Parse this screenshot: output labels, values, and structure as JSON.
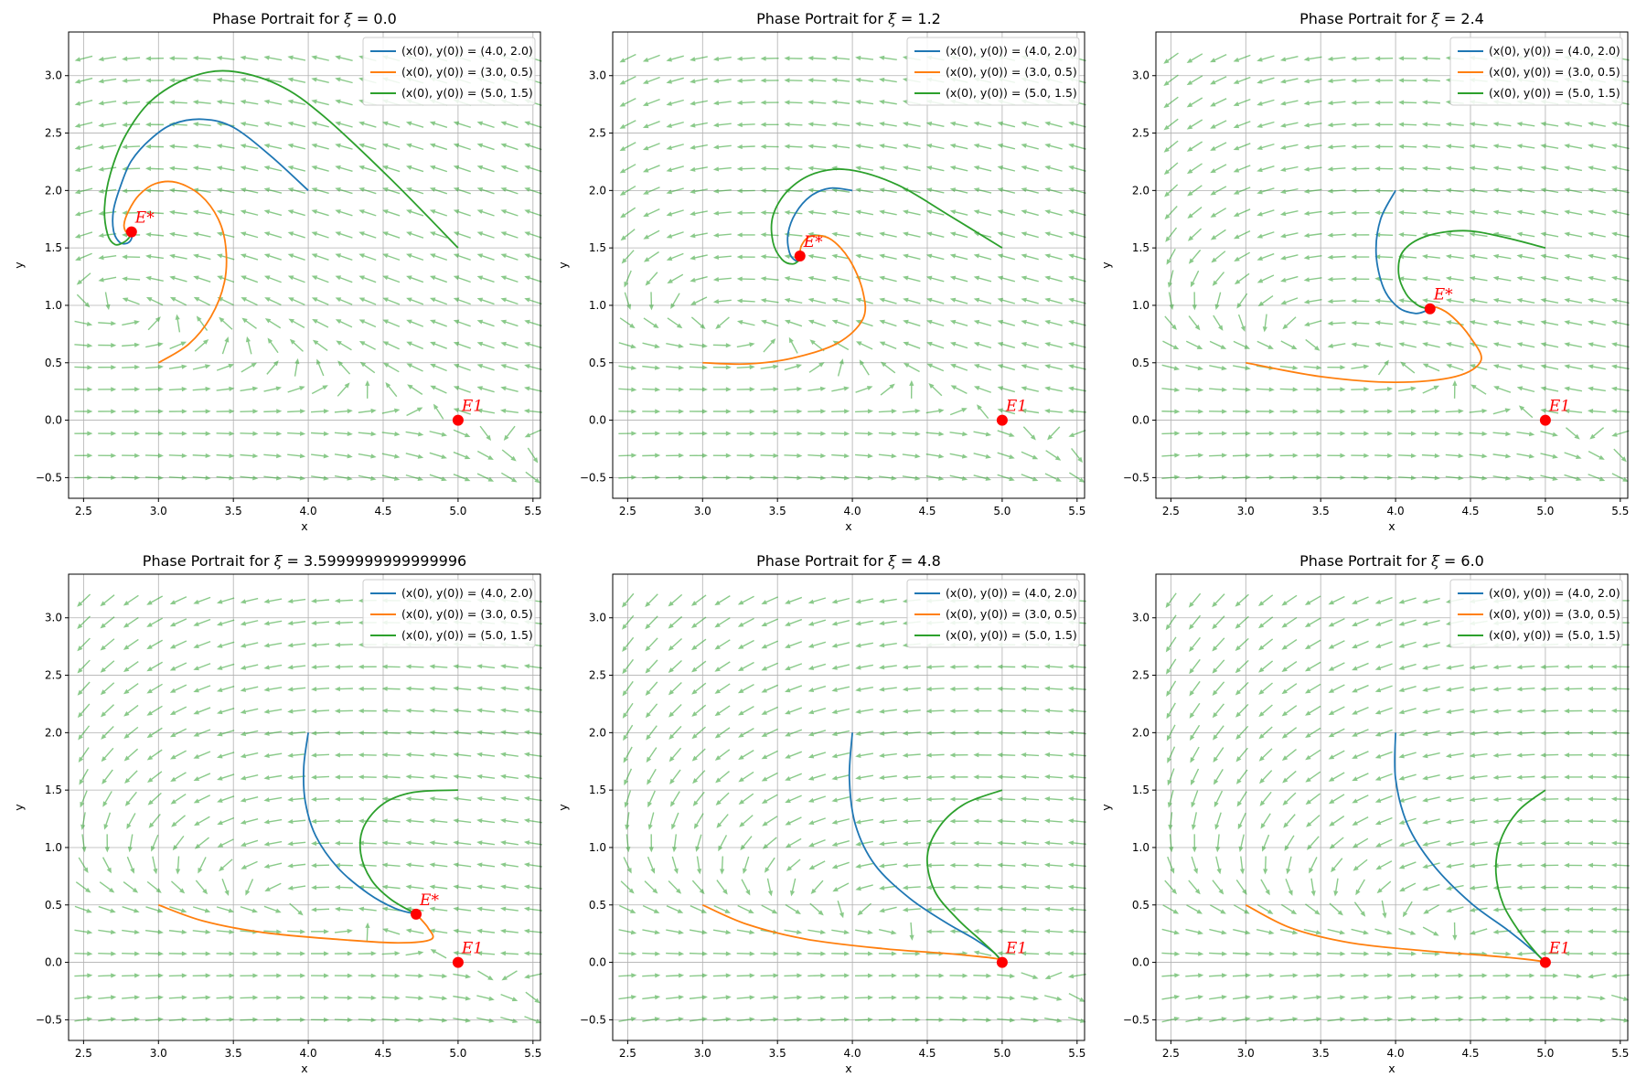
{
  "colors": {
    "series": [
      "#1f77b4",
      "#ff7f0e",
      "#2ca02c"
    ],
    "quiver": "#2ca02c",
    "grid": "#b0b0b0",
    "equilibrium": "#ff0000"
  },
  "chart_data": [
    {
      "type": "line",
      "title_prefix": "Phase Portrait for ",
      "title_symbol": "ξ",
      "title_value": "= 0.0",
      "xlabel": "x",
      "ylabel": "y",
      "xlim": [
        2.4,
        5.55
      ],
      "ylim": [
        -0.68,
        3.38
      ],
      "xticks": [
        2.5,
        3.0,
        3.5,
        4.0,
        4.5,
        5.0,
        5.5
      ],
      "yticks": [
        -0.5,
        0.0,
        0.5,
        1.0,
        1.5,
        2.0,
        2.5,
        3.0
      ],
      "grid": true,
      "legend_position": "upper right",
      "legend": [
        "(x(0), y(0)) = (4.0, 2.0)",
        "(x(0), y(0)) = (3.0, 0.5)",
        "(x(0), y(0)) = (5.0, 1.5)"
      ],
      "series": [
        {
          "name": "(x(0), y(0)) = (4.0, 2.0)",
          "points": [
            [
              4.0,
              2.0
            ],
            [
              3.75,
              2.3
            ],
            [
              3.5,
              2.55
            ],
            [
              3.3,
              2.62
            ],
            [
              3.1,
              2.58
            ],
            [
              2.95,
              2.45
            ],
            [
              2.82,
              2.26
            ],
            [
              2.75,
              2.05
            ],
            [
              2.7,
              1.83
            ],
            [
              2.7,
              1.65
            ],
            [
              2.74,
              1.55
            ],
            [
              2.79,
              1.54
            ],
            [
              2.82,
              1.58
            ],
            [
              2.82,
              1.64
            ]
          ]
        },
        {
          "name": "(x(0), y(0)) = (3.0, 0.5)",
          "points": [
            [
              3.0,
              0.5
            ],
            [
              3.2,
              0.66
            ],
            [
              3.35,
              0.9
            ],
            [
              3.44,
              1.2
            ],
            [
              3.45,
              1.5
            ],
            [
              3.4,
              1.75
            ],
            [
              3.28,
              1.96
            ],
            [
              3.12,
              2.07
            ],
            [
              2.98,
              2.06
            ],
            [
              2.87,
              1.96
            ],
            [
              2.8,
              1.82
            ],
            [
              2.77,
              1.7
            ],
            [
              2.79,
              1.63
            ],
            [
              2.82,
              1.64
            ]
          ]
        },
        {
          "name": "(x(0), y(0)) = (5.0, 1.5)",
          "points": [
            [
              5.0,
              1.5
            ],
            [
              4.55,
              2.1
            ],
            [
              4.1,
              2.65
            ],
            [
              3.8,
              2.92
            ],
            [
              3.47,
              3.04
            ],
            [
              3.2,
              2.98
            ],
            [
              2.95,
              2.78
            ],
            [
              2.78,
              2.48
            ],
            [
              2.68,
              2.15
            ],
            [
              2.64,
              1.85
            ],
            [
              2.66,
              1.62
            ],
            [
              2.71,
              1.53
            ],
            [
              2.77,
              1.55
            ],
            [
              2.81,
              1.6
            ],
            [
              2.82,
              1.64
            ]
          ]
        }
      ],
      "equilibria": [
        {
          "label": "E*",
          "x": 2.82,
          "y": 1.64
        },
        {
          "label": "E1",
          "x": 5.0,
          "y": 0.0
        }
      ]
    },
    {
      "type": "line",
      "title_prefix": "Phase Portrait for ",
      "title_symbol": "ξ",
      "title_value": "= 1.2",
      "xlabel": "x",
      "ylabel": "y",
      "xlim": [
        2.4,
        5.55
      ],
      "ylim": [
        -0.68,
        3.38
      ],
      "xticks": [
        2.5,
        3.0,
        3.5,
        4.0,
        4.5,
        5.0,
        5.5
      ],
      "yticks": [
        -0.5,
        0.0,
        0.5,
        1.0,
        1.5,
        2.0,
        2.5,
        3.0
      ],
      "grid": true,
      "legend_position": "upper right",
      "legend": [
        "(x(0), y(0)) = (4.0, 2.0)",
        "(x(0), y(0)) = (3.0, 0.5)",
        "(x(0), y(0)) = (5.0, 1.5)"
      ],
      "series": [
        {
          "name": "(x(0), y(0)) = (4.0, 2.0)",
          "points": [
            [
              4.0,
              2.0
            ],
            [
              3.85,
              2.02
            ],
            [
              3.72,
              1.95
            ],
            [
              3.62,
              1.8
            ],
            [
              3.57,
              1.62
            ],
            [
              3.58,
              1.46
            ],
            [
              3.62,
              1.39
            ],
            [
              3.66,
              1.4
            ],
            [
              3.65,
              1.43
            ]
          ]
        },
        {
          "name": "(x(0), y(0)) = (3.0, 0.5)",
          "points": [
            [
              3.0,
              0.5
            ],
            [
              3.3,
              0.49
            ],
            [
              3.6,
              0.54
            ],
            [
              3.9,
              0.67
            ],
            [
              4.07,
              0.88
            ],
            [
              4.07,
              1.12
            ],
            [
              3.98,
              1.4
            ],
            [
              3.85,
              1.58
            ],
            [
              3.72,
              1.6
            ],
            [
              3.66,
              1.52
            ],
            [
              3.65,
              1.43
            ]
          ]
        },
        {
          "name": "(x(0), y(0)) = (5.0, 1.5)",
          "points": [
            [
              5.0,
              1.5
            ],
            [
              4.65,
              1.78
            ],
            [
              4.3,
              2.05
            ],
            [
              3.98,
              2.18
            ],
            [
              3.75,
              2.15
            ],
            [
              3.57,
              2.0
            ],
            [
              3.47,
              1.78
            ],
            [
              3.47,
              1.55
            ],
            [
              3.53,
              1.4
            ],
            [
              3.6,
              1.36
            ],
            [
              3.65,
              1.4
            ],
            [
              3.65,
              1.43
            ]
          ]
        }
      ],
      "equilibria": [
        {
          "label": "E*",
          "x": 3.65,
          "y": 1.43
        },
        {
          "label": "E1",
          "x": 5.0,
          "y": 0.0
        }
      ]
    },
    {
      "type": "line",
      "title_prefix": "Phase Portrait for ",
      "title_symbol": "ξ",
      "title_value": "= 2.4",
      "xlabel": "x",
      "ylabel": "y",
      "xlim": [
        2.4,
        5.55
      ],
      "ylim": [
        -0.68,
        3.38
      ],
      "xticks": [
        2.5,
        3.0,
        3.5,
        4.0,
        4.5,
        5.0,
        5.5
      ],
      "yticks": [
        -0.5,
        0.0,
        0.5,
        1.0,
        1.5,
        2.0,
        2.5,
        3.0
      ],
      "grid": true,
      "legend_position": "upper right",
      "legend": [
        "(x(0), y(0)) = (4.0, 2.0)",
        "(x(0), y(0)) = (3.0, 0.5)",
        "(x(0), y(0)) = (5.0, 1.5)"
      ],
      "series": [
        {
          "name": "(x(0), y(0)) = (4.0, 2.0)",
          "points": [
            [
              4.0,
              2.0
            ],
            [
              3.9,
              1.75
            ],
            [
              3.87,
              1.45
            ],
            [
              3.92,
              1.15
            ],
            [
              4.02,
              0.98
            ],
            [
              4.13,
              0.93
            ],
            [
              4.2,
              0.95
            ],
            [
              4.23,
              0.97
            ]
          ]
        },
        {
          "name": "(x(0), y(0)) = (3.0, 0.5)",
          "points": [
            [
              3.0,
              0.5
            ],
            [
              3.5,
              0.38
            ],
            [
              4.0,
              0.33
            ],
            [
              4.4,
              0.38
            ],
            [
              4.57,
              0.52
            ],
            [
              4.5,
              0.72
            ],
            [
              4.38,
              0.9
            ],
            [
              4.28,
              0.98
            ],
            [
              4.23,
              0.97
            ]
          ]
        },
        {
          "name": "(x(0), y(0)) = (5.0, 1.5)",
          "points": [
            [
              5.0,
              1.5
            ],
            [
              4.7,
              1.6
            ],
            [
              4.45,
              1.65
            ],
            [
              4.2,
              1.6
            ],
            [
              4.05,
              1.47
            ],
            [
              4.02,
              1.28
            ],
            [
              4.07,
              1.1
            ],
            [
              4.15,
              1.0
            ],
            [
              4.22,
              0.97
            ],
            [
              4.23,
              0.97
            ]
          ]
        }
      ],
      "equilibria": [
        {
          "label": "E*",
          "x": 4.23,
          "y": 0.97
        },
        {
          "label": "E1",
          "x": 5.0,
          "y": 0.0
        }
      ]
    },
    {
      "type": "line",
      "title_prefix": "Phase Portrait for ",
      "title_symbol": "ξ",
      "title_value": "= 3.5999999999999996",
      "xlabel": "x",
      "ylabel": "y",
      "xlim": [
        2.4,
        5.55
      ],
      "ylim": [
        -0.68,
        3.38
      ],
      "xticks": [
        2.5,
        3.0,
        3.5,
        4.0,
        4.5,
        5.0,
        5.5
      ],
      "yticks": [
        -0.5,
        0.0,
        0.5,
        1.0,
        1.5,
        2.0,
        2.5,
        3.0
      ],
      "grid": true,
      "legend_position": "upper right",
      "legend": [
        "(x(0), y(0)) = (4.0, 2.0)",
        "(x(0), y(0)) = (3.0, 0.5)",
        "(x(0), y(0)) = (5.0, 1.5)"
      ],
      "series": [
        {
          "name": "(x(0), y(0)) = (4.0, 2.0)",
          "points": [
            [
              4.0,
              2.0
            ],
            [
              3.97,
              1.7
            ],
            [
              3.98,
              1.4
            ],
            [
              4.05,
              1.1
            ],
            [
              4.2,
              0.82
            ],
            [
              4.4,
              0.6
            ],
            [
              4.58,
              0.47
            ],
            [
              4.72,
              0.42
            ]
          ]
        },
        {
          "name": "(x(0), y(0)) = (3.0, 0.5)",
          "points": [
            [
              3.0,
              0.5
            ],
            [
              3.3,
              0.36
            ],
            [
              3.7,
              0.26
            ],
            [
              4.2,
              0.2
            ],
            [
              4.6,
              0.17
            ],
            [
              4.82,
              0.2
            ],
            [
              4.8,
              0.3
            ],
            [
              4.72,
              0.42
            ]
          ]
        },
        {
          "name": "(x(0), y(0)) = (5.0, 1.5)",
          "points": [
            [
              5.0,
              1.5
            ],
            [
              4.7,
              1.48
            ],
            [
              4.5,
              1.38
            ],
            [
              4.37,
              1.18
            ],
            [
              4.35,
              0.95
            ],
            [
              4.42,
              0.72
            ],
            [
              4.55,
              0.55
            ],
            [
              4.72,
              0.42
            ]
          ]
        }
      ],
      "equilibria": [
        {
          "label": "E*",
          "x": 4.72,
          "y": 0.42
        },
        {
          "label": "E1",
          "x": 5.0,
          "y": 0.0
        }
      ]
    },
    {
      "type": "line",
      "title_prefix": "Phase Portrait for ",
      "title_symbol": "ξ",
      "title_value": "= 4.8",
      "xlabel": "x",
      "ylabel": "y",
      "xlim": [
        2.4,
        5.55
      ],
      "ylim": [
        -0.68,
        3.38
      ],
      "xticks": [
        2.5,
        3.0,
        3.5,
        4.0,
        4.5,
        5.0,
        5.5
      ],
      "yticks": [
        -0.5,
        0.0,
        0.5,
        1.0,
        1.5,
        2.0,
        2.5,
        3.0
      ],
      "grid": true,
      "legend_position": "upper right",
      "legend": [
        "(x(0), y(0)) = (4.0, 2.0)",
        "(x(0), y(0)) = (3.0, 0.5)",
        "(x(0), y(0)) = (5.0, 1.5)"
      ],
      "series": [
        {
          "name": "(x(0), y(0)) = (4.0, 2.0)",
          "points": [
            [
              4.0,
              2.0
            ],
            [
              3.98,
              1.6
            ],
            [
              4.02,
              1.2
            ],
            [
              4.15,
              0.85
            ],
            [
              4.38,
              0.56
            ],
            [
              4.62,
              0.35
            ],
            [
              4.82,
              0.2
            ],
            [
              4.95,
              0.08
            ],
            [
              5.0,
              0.0
            ]
          ]
        },
        {
          "name": "(x(0), y(0)) = (3.0, 0.5)",
          "points": [
            [
              3.0,
              0.5
            ],
            [
              3.3,
              0.33
            ],
            [
              3.7,
              0.2
            ],
            [
              4.2,
              0.12
            ],
            [
              4.6,
              0.08
            ],
            [
              4.85,
              0.05
            ],
            [
              4.97,
              0.03
            ],
            [
              5.0,
              0.0
            ]
          ]
        },
        {
          "name": "(x(0), y(0)) = (5.0, 1.5)",
          "points": [
            [
              5.0,
              1.5
            ],
            [
              4.75,
              1.38
            ],
            [
              4.58,
              1.18
            ],
            [
              4.5,
              0.92
            ],
            [
              4.55,
              0.62
            ],
            [
              4.7,
              0.38
            ],
            [
              4.85,
              0.2
            ],
            [
              4.95,
              0.08
            ],
            [
              5.0,
              0.0
            ]
          ]
        }
      ],
      "equilibria": [
        {
          "label": "E1",
          "x": 5.0,
          "y": 0.0
        }
      ]
    },
    {
      "type": "line",
      "title_prefix": "Phase Portrait for ",
      "title_symbol": "ξ",
      "title_value": "= 6.0",
      "xlabel": "x",
      "ylabel": "y",
      "xlim": [
        2.4,
        5.55
      ],
      "ylim": [
        -0.68,
        3.38
      ],
      "xticks": [
        2.5,
        3.0,
        3.5,
        4.0,
        4.5,
        5.0,
        5.5
      ],
      "yticks": [
        -0.5,
        0.0,
        0.5,
        1.0,
        1.5,
        2.0,
        2.5,
        3.0
      ],
      "grid": true,
      "legend_position": "upper right",
      "legend": [
        "(x(0), y(0)) = (4.0, 2.0)",
        "(x(0), y(0)) = (3.0, 0.5)",
        "(x(0), y(0)) = (5.0, 1.5)"
      ],
      "series": [
        {
          "name": "(x(0), y(0)) = (4.0, 2.0)",
          "points": [
            [
              4.0,
              2.0
            ],
            [
              4.0,
              1.6
            ],
            [
              4.08,
              1.2
            ],
            [
              4.25,
              0.85
            ],
            [
              4.5,
              0.52
            ],
            [
              4.75,
              0.28
            ],
            [
              4.92,
              0.1
            ],
            [
              5.0,
              0.0
            ]
          ]
        },
        {
          "name": "(x(0), y(0)) = (3.0, 0.5)",
          "points": [
            [
              3.0,
              0.5
            ],
            [
              3.3,
              0.3
            ],
            [
              3.7,
              0.17
            ],
            [
              4.2,
              0.1
            ],
            [
              4.6,
              0.06
            ],
            [
              4.85,
              0.03
            ],
            [
              4.97,
              0.01
            ],
            [
              5.0,
              0.0
            ]
          ]
        },
        {
          "name": "(x(0), y(0)) = (5.0, 1.5)",
          "points": [
            [
              5.0,
              1.5
            ],
            [
              4.82,
              1.32
            ],
            [
              4.7,
              1.06
            ],
            [
              4.67,
              0.78
            ],
            [
              4.72,
              0.5
            ],
            [
              4.83,
              0.26
            ],
            [
              4.94,
              0.08
            ],
            [
              5.0,
              0.0
            ]
          ]
        }
      ],
      "equilibria": [
        {
          "label": "E1",
          "x": 5.0,
          "y": 0.0
        }
      ]
    }
  ]
}
